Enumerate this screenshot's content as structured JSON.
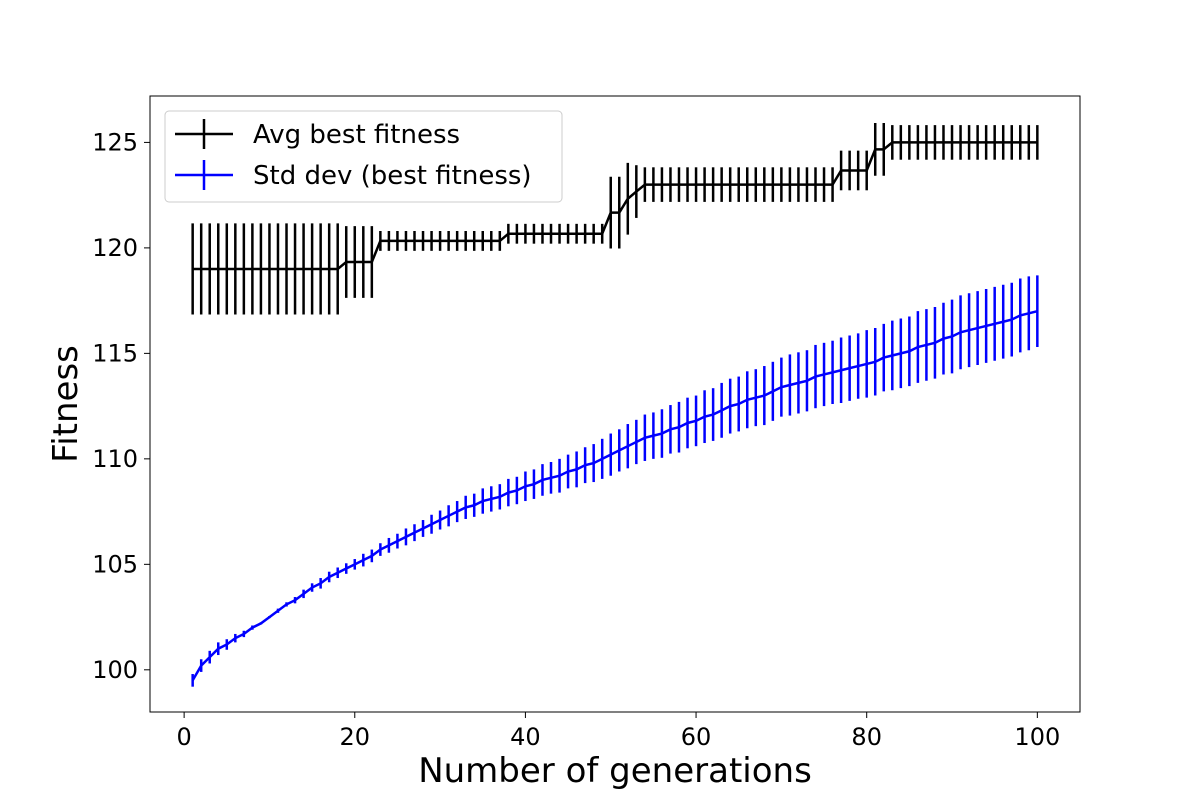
{
  "chart_data": {
    "type": "line",
    "title": "",
    "xlabel": "Number of generations",
    "ylabel": "Fitness",
    "xlim": [
      -4,
      105
    ],
    "ylim": [
      98,
      127.2
    ],
    "xticks": [
      0,
      20,
      40,
      60,
      80,
      100
    ],
    "yticks": [
      100,
      105,
      110,
      115,
      120,
      125
    ],
    "grid": false,
    "legend_position": "top-left",
    "series": [
      {
        "name": "Avg best fitness",
        "color": "#000000",
        "x_start": 1,
        "x_step": 1,
        "values": [
          119.0,
          119.0,
          119.0,
          119.0,
          119.0,
          119.0,
          119.0,
          119.0,
          119.0,
          119.0,
          119.0,
          119.0,
          119.0,
          119.0,
          119.0,
          119.0,
          119.0,
          119.0,
          119.33,
          119.33,
          119.33,
          119.33,
          120.33,
          120.33,
          120.33,
          120.33,
          120.33,
          120.33,
          120.33,
          120.33,
          120.33,
          120.33,
          120.33,
          120.33,
          120.33,
          120.33,
          120.33,
          120.67,
          120.67,
          120.67,
          120.67,
          120.67,
          120.67,
          120.67,
          120.67,
          120.67,
          120.67,
          120.67,
          120.67,
          121.67,
          121.67,
          122.33,
          122.67,
          123.0,
          123.0,
          123.0,
          123.0,
          123.0,
          123.0,
          123.0,
          123.0,
          123.0,
          123.0,
          123.0,
          123.0,
          123.0,
          123.0,
          123.0,
          123.0,
          123.0,
          123.0,
          123.0,
          123.0,
          123.0,
          123.0,
          123.0,
          123.67,
          123.67,
          123.67,
          123.67,
          124.67,
          124.67,
          125.0,
          125.0,
          125.0,
          125.0,
          125.0,
          125.0,
          125.0,
          125.0,
          125.0,
          125.0,
          125.0,
          125.0,
          125.0,
          125.0,
          125.0,
          125.0,
          125.0,
          125.0
        ],
        "errors": [
          2.16,
          2.16,
          2.16,
          2.16,
          2.16,
          2.16,
          2.16,
          2.16,
          2.16,
          2.16,
          2.16,
          2.16,
          2.16,
          2.16,
          2.16,
          2.16,
          2.16,
          2.16,
          1.7,
          1.7,
          1.7,
          1.7,
          0.47,
          0.47,
          0.47,
          0.47,
          0.47,
          0.47,
          0.47,
          0.47,
          0.47,
          0.47,
          0.47,
          0.47,
          0.47,
          0.47,
          0.47,
          0.47,
          0.47,
          0.47,
          0.47,
          0.47,
          0.47,
          0.47,
          0.47,
          0.47,
          0.47,
          0.47,
          0.47,
          1.7,
          1.7,
          1.7,
          1.25,
          0.82,
          0.82,
          0.82,
          0.82,
          0.82,
          0.82,
          0.82,
          0.82,
          0.82,
          0.82,
          0.82,
          0.82,
          0.82,
          0.82,
          0.82,
          0.82,
          0.82,
          0.82,
          0.82,
          0.82,
          0.82,
          0.82,
          0.82,
          0.94,
          0.94,
          0.94,
          0.94,
          1.25,
          1.25,
          0.82,
          0.82,
          0.82,
          0.82,
          0.82,
          0.82,
          0.82,
          0.82,
          0.82,
          0.82,
          0.82,
          0.82,
          0.82,
          0.82,
          0.82,
          0.82,
          0.82,
          0.82
        ]
      },
      {
        "name": "Std dev (best fitness)",
        "color": "#0000ff",
        "x": [
          1,
          2,
          3,
          4,
          5,
          6,
          7,
          8,
          9,
          10,
          11,
          12,
          13,
          14,
          15,
          16,
          17,
          18,
          19,
          20,
          21,
          22,
          23,
          24,
          25,
          26,
          27,
          28,
          29,
          30,
          31,
          32,
          33,
          34,
          35,
          36,
          37,
          38,
          39,
          40,
          41,
          42,
          43,
          44,
          45,
          46,
          47,
          48,
          49,
          50,
          51,
          52,
          53,
          54,
          55,
          56,
          57,
          58,
          59,
          60,
          61,
          62,
          63,
          64,
          65,
          66,
          67,
          68,
          69,
          70,
          71,
          72,
          73,
          74,
          75,
          76,
          77,
          78,
          79,
          80,
          81,
          82,
          83,
          84,
          85,
          86,
          87,
          88,
          89,
          90,
          91,
          92,
          93,
          94,
          95,
          96,
          97,
          98,
          99,
          100
        ],
        "values": [
          99.5,
          100.2,
          100.6,
          101.0,
          101.2,
          101.5,
          101.7,
          102.0,
          102.2,
          102.5,
          102.8,
          103.1,
          103.3,
          103.6,
          103.9,
          104.1,
          104.4,
          104.6,
          104.8,
          105.0,
          105.2,
          105.4,
          105.7,
          105.9,
          106.1,
          106.3,
          106.5,
          106.7,
          106.9,
          107.1,
          107.3,
          107.5,
          107.7,
          107.8,
          108.0,
          108.1,
          108.2,
          108.4,
          108.5,
          108.7,
          108.8,
          109.0,
          109.1,
          109.2,
          109.4,
          109.5,
          109.7,
          109.8,
          110.0,
          110.2,
          110.4,
          110.6,
          110.8,
          111.0,
          111.1,
          111.2,
          111.4,
          111.5,
          111.7,
          111.8,
          112.0,
          112.1,
          112.3,
          112.5,
          112.6,
          112.8,
          112.9,
          113.0,
          113.2,
          113.4,
          113.5,
          113.6,
          113.7,
          113.9,
          114.0,
          114.1,
          114.2,
          114.3,
          114.4,
          114.5,
          114.6,
          114.8,
          114.9,
          115.0,
          115.1,
          115.3,
          115.4,
          115.5,
          115.7,
          115.8,
          116.0,
          116.1,
          116.2,
          116.3,
          116.4,
          116.5,
          116.6,
          116.8,
          116.9,
          117.0
        ],
        "errors": [
          0.3,
          0.3,
          0.3,
          0.3,
          0.25,
          0.2,
          0.15,
          0.1,
          0.05,
          0.05,
          0.1,
          0.1,
          0.15,
          0.2,
          0.2,
          0.25,
          0.25,
          0.25,
          0.25,
          0.25,
          0.3,
          0.3,
          0.3,
          0.35,
          0.35,
          0.4,
          0.4,
          0.4,
          0.45,
          0.45,
          0.5,
          0.5,
          0.55,
          0.55,
          0.6,
          0.6,
          0.6,
          0.65,
          0.65,
          0.7,
          0.7,
          0.75,
          0.75,
          0.8,
          0.8,
          0.85,
          0.85,
          0.9,
          0.95,
          1.0,
          1.0,
          1.05,
          1.05,
          1.1,
          1.1,
          1.15,
          1.15,
          1.2,
          1.2,
          1.2,
          1.25,
          1.25,
          1.3,
          1.3,
          1.3,
          1.35,
          1.35,
          1.4,
          1.4,
          1.4,
          1.45,
          1.45,
          1.45,
          1.5,
          1.5,
          1.5,
          1.55,
          1.55,
          1.55,
          1.6,
          1.6,
          1.6,
          1.65,
          1.65,
          1.65,
          1.7,
          1.7,
          1.7,
          1.7,
          1.75,
          1.75,
          1.75,
          1.75,
          1.75,
          1.75,
          1.75,
          1.75,
          1.75,
          1.75,
          1.7
        ]
      }
    ]
  }
}
